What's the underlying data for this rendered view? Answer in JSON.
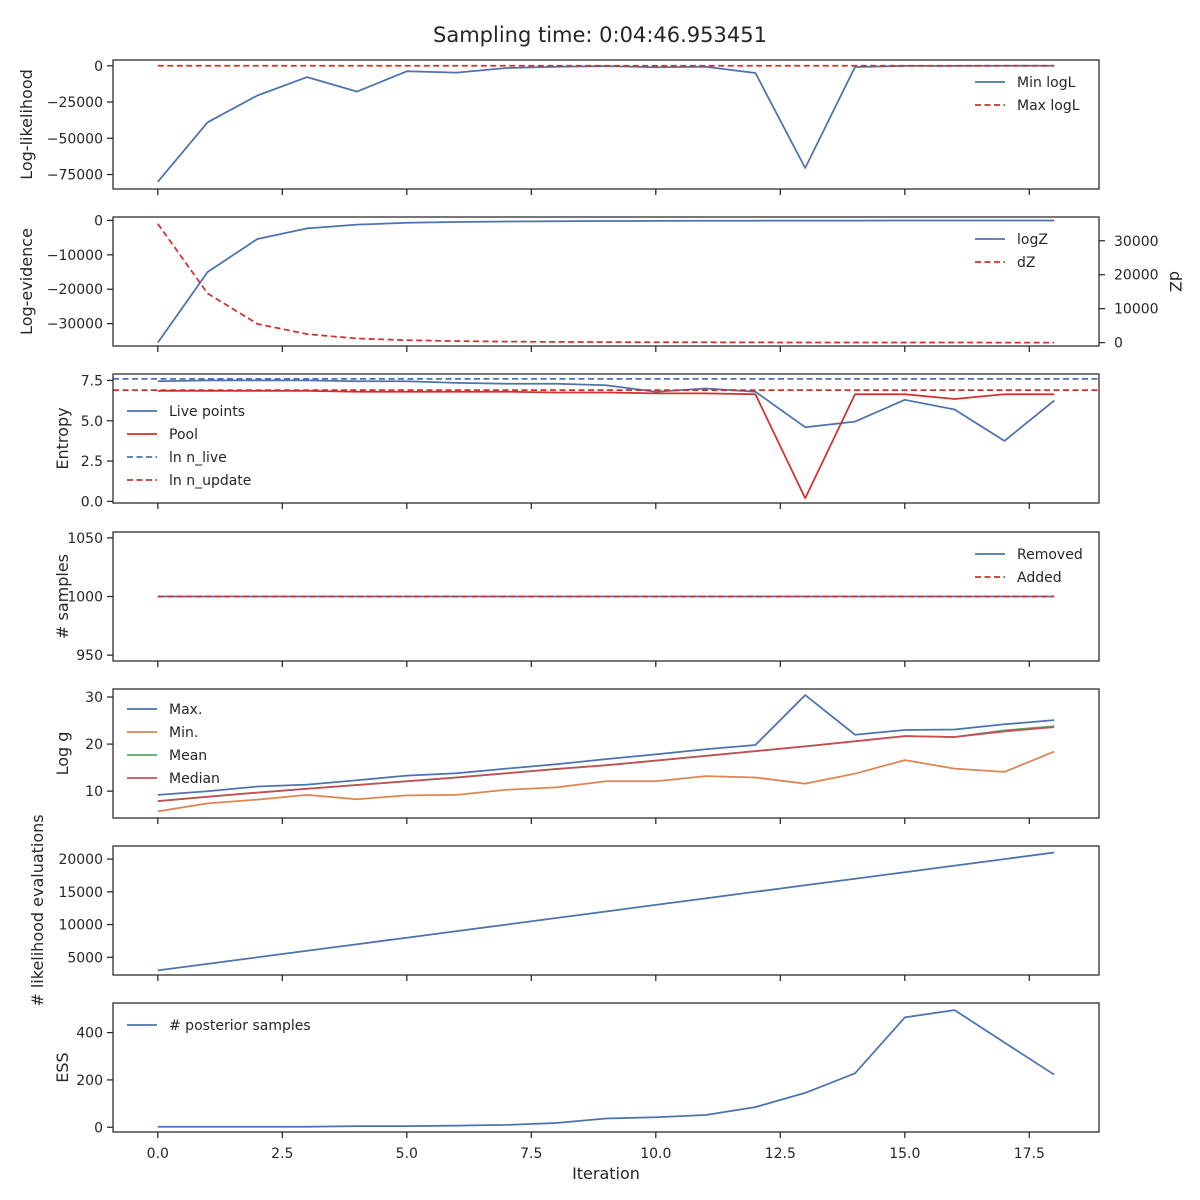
{
  "figure": {
    "title": "Sampling time: 0:04:46.953451",
    "xlabel": "Iteration",
    "x_ticks": [
      0.0,
      2.5,
      5.0,
      7.5,
      10.0,
      12.5,
      15.0,
      17.5
    ],
    "x_tick_labels": [
      "0.0",
      "2.5",
      "5.0",
      "7.5",
      "10.0",
      "12.5",
      "15.0",
      "17.5"
    ],
    "xlim": [
      -0.9,
      18.9
    ]
  },
  "colors": {
    "blue": "#4c72b0",
    "red": "#d0312d",
    "orange": "#dd8452",
    "green": "#55a868",
    "darkred": "#c44e52",
    "axis": "#262626"
  },
  "chart_data": [
    {
      "type": "line",
      "ylabel": "Log-likelihood",
      "ylim": [
        -85000,
        4000
      ],
      "y_ticks": [
        0,
        -25000,
        -50000,
        -75000
      ],
      "y_tick_labels": [
        "0",
        "−25000",
        "−50000",
        "−75000"
      ],
      "legend_position": "top-right",
      "x": [
        0,
        1,
        2,
        3,
        4,
        5,
        6,
        7,
        8,
        9,
        10,
        11,
        12,
        13,
        14,
        15,
        16,
        17,
        18
      ],
      "series": [
        {
          "name": "Min logL",
          "color": "blue",
          "dash": false,
          "values": [
            -80000,
            -39000,
            -20500,
            -7800,
            -17800,
            -3800,
            -4700,
            -1500,
            -600,
            -200,
            -1000,
            -600,
            -5000,
            -70500,
            -800,
            -100,
            -50,
            -30,
            -20
          ]
        },
        {
          "name": "Max logL",
          "color": "red",
          "dash": true,
          "values": [
            0,
            0,
            0,
            0,
            0,
            0,
            0,
            0,
            0,
            0,
            0,
            0,
            0,
            0,
            0,
            0,
            0,
            0,
            0
          ]
        }
      ]
    },
    {
      "type": "line",
      "ylabel": "Log-evidence",
      "ylim": [
        -36500,
        1000
      ],
      "y_ticks": [
        0,
        -10000,
        -20000,
        -30000
      ],
      "y_tick_labels": [
        "0",
        "−10000",
        "−20000",
        "−30000"
      ],
      "y2label": "dZ",
      "y2lim": [
        -1000,
        37000
      ],
      "y2_ticks": [
        0,
        10000,
        20000,
        30000
      ],
      "y2_tick_labels": [
        "0",
        "10000",
        "20000",
        "30000"
      ],
      "legend_position": "top-right",
      "x": [
        0,
        1,
        2,
        3,
        4,
        5,
        6,
        7,
        8,
        9,
        10,
        11,
        12,
        13,
        14,
        15,
        16,
        17,
        18
      ],
      "series": [
        {
          "name": "logZ",
          "color": "blue",
          "dash": false,
          "axis": "left",
          "values": [
            -35500,
            -15000,
            -5400,
            -2300,
            -1200,
            -700,
            -450,
            -300,
            -220,
            -160,
            -120,
            -90,
            -70,
            -50,
            -40,
            -30,
            -20,
            -15,
            -10
          ]
        },
        {
          "name": "dZ",
          "color": "red",
          "dash": true,
          "axis": "right",
          "values": [
            35000,
            14500,
            5500,
            2500,
            1200,
            700,
            450,
            300,
            200,
            150,
            100,
            80,
            60,
            45,
            35,
            25,
            20,
            15,
            10
          ]
        }
      ]
    },
    {
      "type": "line",
      "ylabel": "Entropy",
      "ylim": [
        -0.1,
        7.9
      ],
      "y_ticks": [
        0.0,
        2.5,
        5.0,
        7.5
      ],
      "y_tick_labels": [
        "0.0",
        "2.5",
        "5.0",
        "7.5"
      ],
      "legend_position": "left",
      "x": [
        0,
        1,
        2,
        3,
        4,
        5,
        6,
        7,
        8,
        9,
        10,
        11,
        12,
        13,
        14,
        15,
        16,
        17,
        18
      ],
      "series": [
        {
          "name": "Live points",
          "color": "blue",
          "dash": false,
          "values": [
            7.45,
            7.5,
            7.5,
            7.5,
            7.45,
            7.45,
            7.35,
            7.3,
            7.3,
            7.2,
            6.8,
            7.0,
            6.8,
            4.6,
            4.95,
            6.3,
            5.7,
            3.75,
            6.25
          ]
        },
        {
          "name": "Pool",
          "color": "red",
          "dash": false,
          "values": [
            6.85,
            6.85,
            6.85,
            6.85,
            6.8,
            6.8,
            6.8,
            6.8,
            6.75,
            6.75,
            6.7,
            6.7,
            6.65,
            0.2,
            6.65,
            6.65,
            6.35,
            6.65,
            6.65
          ]
        },
        {
          "name": "ln n_live",
          "color": "blue",
          "dash": true,
          "hline": 7.6
        },
        {
          "name": "ln n_update",
          "color": "red",
          "dash": true,
          "hline": 6.9
        }
      ]
    },
    {
      "type": "line",
      "ylabel": "# samples",
      "ylim": [
        945,
        1055
      ],
      "y_ticks": [
        950,
        1000,
        1050
      ],
      "y_tick_labels": [
        "950",
        "1000",
        "1050"
      ],
      "legend_position": "top-right",
      "x": [
        0,
        1,
        2,
        3,
        4,
        5,
        6,
        7,
        8,
        9,
        10,
        11,
        12,
        13,
        14,
        15,
        16,
        17,
        18
      ],
      "series": [
        {
          "name": "Removed",
          "color": "blue",
          "dash": false,
          "values": [
            1000,
            1000,
            1000,
            1000,
            1000,
            1000,
            1000,
            1000,
            1000,
            1000,
            1000,
            1000,
            1000,
            1000,
            1000,
            1000,
            1000,
            1000,
            1000
          ]
        },
        {
          "name": "Added",
          "color": "red",
          "dash": true,
          "values": [
            1000,
            1000,
            1000,
            1000,
            1000,
            1000,
            1000,
            1000,
            1000,
            1000,
            1000,
            1000,
            1000,
            1000,
            1000,
            1000,
            1000,
            1000,
            1000
          ]
        }
      ]
    },
    {
      "type": "line",
      "ylabel": "Log g",
      "ylim": [
        4.3,
        31.7
      ],
      "y_ticks": [
        10,
        20,
        30
      ],
      "y_tick_labels": [
        "10",
        "20",
        "30"
      ],
      "legend_position": "top-left",
      "x": [
        0,
        1,
        2,
        3,
        4,
        5,
        6,
        7,
        8,
        9,
        10,
        11,
        12,
        13,
        14,
        15,
        16,
        17,
        18
      ],
      "series": [
        {
          "name": "Max.",
          "color": "blue",
          "dash": false,
          "values": [
            9.2,
            10.0,
            11.0,
            11.4,
            12.3,
            13.3,
            13.8,
            14.8,
            15.7,
            16.8,
            17.8,
            18.9,
            19.8,
            30.4,
            22.0,
            23.0,
            23.1,
            24.2,
            25.1
          ]
        },
        {
          "name": "Min.",
          "color": "orange",
          "dash": false,
          "values": [
            5.7,
            7.4,
            8.2,
            9.2,
            8.3,
            9.1,
            9.2,
            10.3,
            10.8,
            12.1,
            12.1,
            13.2,
            12.9,
            11.6,
            13.7,
            16.6,
            14.8,
            14.1,
            18.4
          ]
        },
        {
          "name": "Mean",
          "color": "green",
          "dash": false,
          "values": [
            7.9,
            8.8,
            9.7,
            10.5,
            11.3,
            12.1,
            12.9,
            13.8,
            14.7,
            15.5,
            16.5,
            17.5,
            18.5,
            19.5,
            20.6,
            21.7,
            21.5,
            22.9,
            23.8
          ]
        },
        {
          "name": "Median",
          "color": "darkred",
          "dash": false,
          "values": [
            7.9,
            8.8,
            9.7,
            10.5,
            11.3,
            12.1,
            12.9,
            13.8,
            14.7,
            15.5,
            16.5,
            17.5,
            18.5,
            19.5,
            20.6,
            21.7,
            21.5,
            22.7,
            23.6
          ]
        }
      ]
    },
    {
      "type": "line",
      "ylabel": "# likelihood evaluations",
      "ylim": [
        2300,
        22000
      ],
      "y_ticks": [
        5000,
        10000,
        15000,
        20000
      ],
      "y_tick_labels": [
        "5000",
        "10000",
        "15000",
        "20000"
      ],
      "legend_position": "none",
      "x": [
        0,
        1,
        2,
        3,
        4,
        5,
        6,
        7,
        8,
        9,
        10,
        11,
        12,
        13,
        14,
        15,
        16,
        17,
        18
      ],
      "series": [
        {
          "name": "",
          "color": "blue",
          "dash": false,
          "values": [
            3000,
            4000,
            5000,
            6000,
            7000,
            8000,
            9000,
            10000,
            11000,
            12000,
            13000,
            14000,
            15000,
            16000,
            17000,
            18000,
            19000,
            20000,
            21000
          ]
        }
      ]
    },
    {
      "type": "line",
      "ylabel": "ESS",
      "ylim": [
        -20,
        525
      ],
      "y_ticks": [
        0,
        200,
        400
      ],
      "y_tick_labels": [
        "0",
        "200",
        "400"
      ],
      "legend_position": "top-left",
      "x": [
        0,
        1,
        2,
        3,
        4,
        5,
        6,
        7,
        8,
        9,
        10,
        11,
        12,
        13,
        14,
        15,
        16,
        17,
        18
      ],
      "series": [
        {
          "name": "# posterior samples",
          "color": "blue",
          "dash": false,
          "values": [
            2,
            2,
            2,
            2,
            5,
            5,
            7,
            10,
            18,
            37,
            42,
            52,
            85,
            145,
            228,
            464,
            495,
            358,
            222
          ]
        }
      ]
    }
  ]
}
